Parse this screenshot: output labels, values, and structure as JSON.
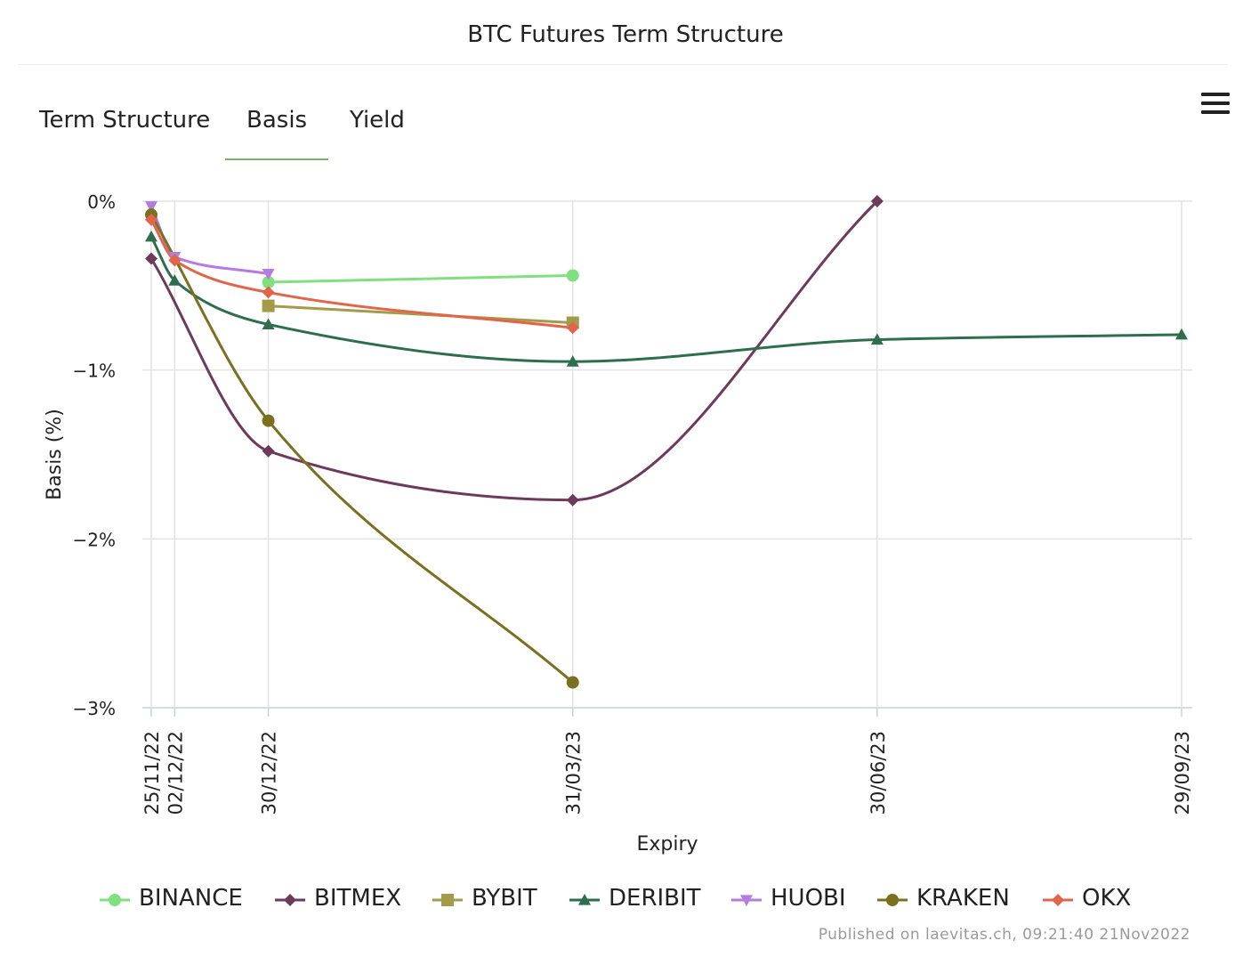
{
  "title": "BTC Futures Term Structure",
  "tabs": [
    {
      "label": "Term Structure",
      "active": false
    },
    {
      "label": "Basis",
      "active": true
    },
    {
      "label": "Yield",
      "active": false
    }
  ],
  "menu_icon": "hamburger-menu-icon",
  "credit": "Published on laevitas.ch, 09:21:40 21Nov2022",
  "colors": {
    "tab_underline": "#7fae6a",
    "grid": "#e3e3e3"
  },
  "chart_data": {
    "type": "line",
    "title": "BTC Futures Term Structure",
    "xlabel": "Expiry",
    "ylabel": "Basis (%)",
    "x_categories": [
      "25/11/22",
      "02/12/22",
      "30/12/22",
      "31/03/23",
      "30/06/23",
      "29/09/23"
    ],
    "x_dates": [
      "2022-11-25",
      "2022-12-02",
      "2022-12-30",
      "2023-03-31",
      "2023-06-30",
      "2023-09-29"
    ],
    "y_ticks": [
      0,
      -1,
      -2,
      -3
    ],
    "y_tick_labels": [
      "0%",
      "−1%",
      "−2%",
      "−3%"
    ],
    "ylim": [
      -3,
      0
    ],
    "grid": true,
    "legend_position": "bottom",
    "series": [
      {
        "name": "BINANCE",
        "color": "#80e080",
        "marker": "circle",
        "points": [
          [
            "2022-12-30",
            -0.48
          ],
          [
            "2023-03-31",
            -0.44
          ]
        ]
      },
      {
        "name": "BITMEX",
        "color": "#6e3a5a",
        "marker": "diamond",
        "points": [
          [
            "2022-11-25",
            -0.34
          ],
          [
            "2022-12-30",
            -1.48
          ],
          [
            "2023-03-31",
            -1.77
          ],
          [
            "2023-06-30",
            0.0
          ]
        ]
      },
      {
        "name": "BYBIT",
        "color": "#a39a4a",
        "marker": "square",
        "points": [
          [
            "2022-12-30",
            -0.62
          ],
          [
            "2023-03-31",
            -0.72
          ]
        ]
      },
      {
        "name": "DERIBIT",
        "color": "#2e6e4e",
        "marker": "triangle",
        "points": [
          [
            "2022-11-25",
            -0.21
          ],
          [
            "2022-12-02",
            -0.47
          ],
          [
            "2022-12-30",
            -0.73
          ],
          [
            "2023-03-31",
            -0.95
          ],
          [
            "2023-06-30",
            -0.82
          ],
          [
            "2023-09-29",
            -0.79
          ]
        ]
      },
      {
        "name": "HUOBI",
        "color": "#b57be0",
        "marker": "triangle-down",
        "points": [
          [
            "2022-11-25",
            -0.03
          ],
          [
            "2022-12-02",
            -0.33
          ],
          [
            "2022-12-30",
            -0.43
          ]
        ]
      },
      {
        "name": "KRAKEN",
        "color": "#7a7020",
        "marker": "circle",
        "points": [
          [
            "2022-11-25",
            -0.08
          ],
          [
            "2022-12-30",
            -1.3
          ],
          [
            "2023-03-31",
            -2.85
          ]
        ]
      },
      {
        "name": "OKX",
        "color": "#e0654a",
        "marker": "diamond",
        "points": [
          [
            "2022-11-25",
            -0.11
          ],
          [
            "2022-12-02",
            -0.35
          ],
          [
            "2022-12-30",
            -0.54
          ],
          [
            "2023-03-31",
            -0.75
          ]
        ]
      }
    ]
  }
}
